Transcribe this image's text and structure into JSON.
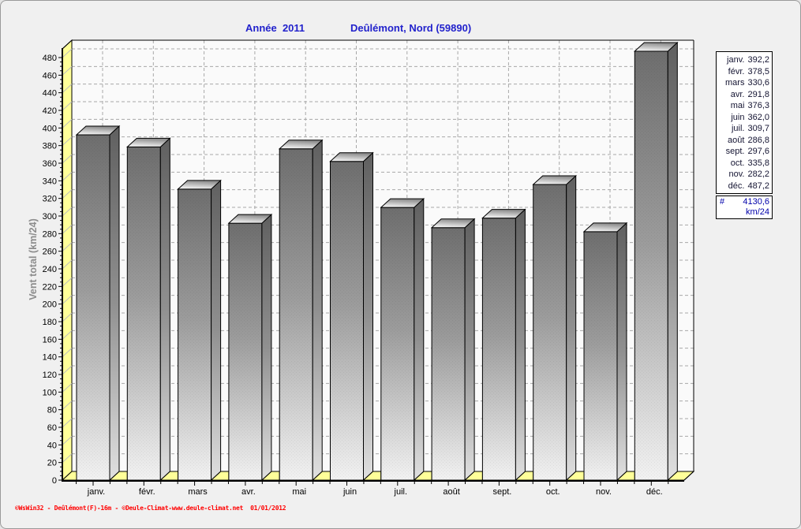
{
  "header": {
    "title_year": "Année  2011",
    "title_location": "Deûlémont, Nord (59890)"
  },
  "chart_data": {
    "type": "bar",
    "style": "3d-gray-bars-yellow-walls",
    "categories": [
      "janv.",
      "févr.",
      "mars",
      "avr.",
      "mai",
      "juin",
      "juil.",
      "août",
      "sept.",
      "oct.",
      "nov.",
      "déc."
    ],
    "values": [
      392.2,
      378.5,
      330.6,
      291.8,
      376.3,
      362.0,
      309.7,
      286.8,
      297.6,
      335.8,
      282.2,
      487.2
    ],
    "title": "Année 2011 — Deûlémont, Nord (59890)",
    "xlabel": "",
    "ylabel": "Vent total  (km/24)",
    "ylim": [
      0,
      480
    ],
    "ytick_step": 20,
    "ytick_minor_step": 5,
    "grid": true,
    "legend_position": "right",
    "total": 4130.6,
    "unit": "km/24"
  },
  "legend": {
    "rows": [
      {
        "label": "janv.",
        "value": "392,2"
      },
      {
        "label": "févr.",
        "value": "378,5"
      },
      {
        "label": "mars",
        "value": "330,6"
      },
      {
        "label": "avr.",
        "value": "291,8"
      },
      {
        "label": "mai",
        "value": "376,3"
      },
      {
        "label": "juin",
        "value": "362,0"
      },
      {
        "label": "juil.",
        "value": "309,7"
      },
      {
        "label": "août",
        "value": "286,8"
      },
      {
        "label": "sept.",
        "value": "297,6"
      },
      {
        "label": "oct.",
        "value": "335,8"
      },
      {
        "label": "nov.",
        "value": "282,2"
      },
      {
        "label": "déc.",
        "value": "487,2"
      }
    ],
    "total_symbol": "#",
    "total_value": "4130,6",
    "total_unit": "km/24"
  },
  "footer": {
    "credit": "©WsWin32 - Deûlémont(F)-16m - ©Deule-Climat-www.deule-climat.net  01/01/2012"
  },
  "colors": {
    "title_blue": "#2222cc",
    "wall_yellow": "#ffff99",
    "grid_gray": "#a8a8a8",
    "bar_dark": "#6e6e6e",
    "bar_light": "#f2f2f2",
    "axis_label_gray": "#8c8c8c",
    "credit_red": "#ff0000",
    "legend_total_blue": "#0000aa",
    "plot_bg": "#fafafa"
  }
}
